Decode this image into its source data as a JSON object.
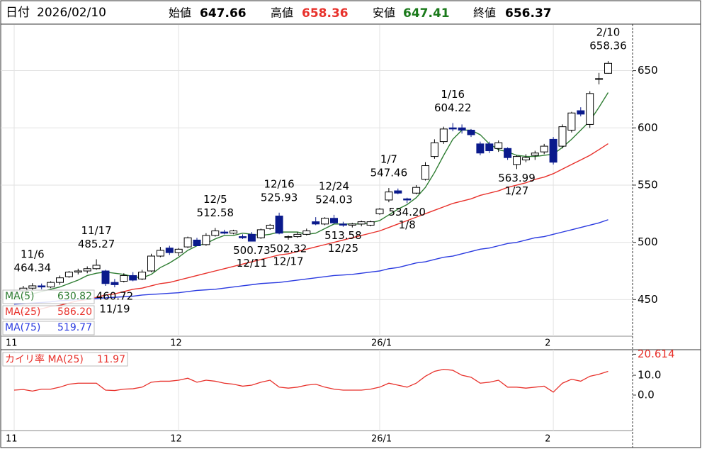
{
  "header": {
    "date_label": "日付",
    "date": "2026/02/10",
    "open_label": "始値",
    "open": 647.66,
    "high_label": "高値",
    "high": 658.36,
    "low_label": "安値",
    "low": 647.41,
    "close_label": "終値",
    "close": 656.37
  },
  "chart_data": {
    "type": "candlestick",
    "categories": [
      "11",
      null,
      null,
      null,
      null,
      null,
      null,
      null,
      null,
      null,
      null,
      null,
      null,
      null,
      null,
      null,
      null,
      null,
      "12",
      null,
      null,
      null,
      null,
      null,
      null,
      null,
      null,
      null,
      null,
      null,
      null,
      null,
      null,
      null,
      null,
      null,
      null,
      null,
      null,
      null,
      "26/1",
      null,
      null,
      null,
      null,
      null,
      null,
      null,
      null,
      null,
      null,
      null,
      null,
      null,
      null,
      null,
      null,
      null,
      null,
      "2",
      null,
      null,
      null,
      null,
      null,
      null
    ],
    "open": [
      455,
      457,
      460,
      462,
      461,
      465,
      470,
      474,
      475,
      477,
      475,
      465,
      466,
      471,
      468,
      475,
      488,
      495,
      491,
      496,
      502,
      498,
      506,
      509,
      508,
      505,
      507,
      504,
      512,
      523,
      505,
      505,
      507,
      518,
      516,
      521,
      516,
      515,
      516,
      515,
      525,
      537,
      545,
      538,
      543,
      555,
      575,
      588,
      600,
      600,
      598,
      586,
      586,
      582,
      582,
      568,
      572,
      576,
      579,
      590,
      584,
      598,
      615,
      603,
      643,
      647.66
    ],
    "high": [
      458,
      462,
      464.34,
      464,
      466,
      471,
      475,
      477,
      479,
      485.27,
      476,
      468,
      473,
      474,
      476,
      490,
      496,
      497,
      495,
      505,
      504,
      508,
      512.58,
      511,
      511,
      507,
      509,
      512,
      516,
      525.93,
      506,
      509,
      512,
      522,
      522,
      524.03,
      518,
      517,
      519,
      519,
      530,
      547.46,
      547,
      539,
      550,
      570,
      590,
      601,
      604.22,
      603,
      599,
      588,
      588,
      589,
      583,
      576,
      577,
      580,
      586,
      592,
      603,
      614,
      618,
      632,
      648,
      658.36
    ],
    "low": [
      452,
      455,
      458,
      459,
      460,
      463,
      469,
      472,
      473,
      476,
      462,
      460.72,
      465,
      466,
      467,
      474,
      487,
      489,
      488,
      495,
      497,
      497,
      505,
      507,
      507,
      503,
      500.73,
      503,
      511,
      507,
      502.32,
      504,
      506,
      515,
      515,
      516,
      513.58,
      513,
      514,
      514,
      524,
      535,
      542,
      534.2,
      542,
      554,
      573,
      586,
      597,
      595,
      592,
      576,
      578,
      579,
      572,
      563.99,
      570,
      572,
      577,
      568,
      582,
      596,
      610,
      600,
      638,
      647.41
    ],
    "close": [
      457,
      460,
      462,
      461,
      465,
      469,
      474,
      475,
      477,
      480,
      464,
      463,
      471,
      467,
      474,
      488,
      493,
      491,
      494,
      504,
      497,
      506,
      510,
      508,
      510,
      504,
      501,
      511,
      515,
      508,
      505,
      507,
      510,
      516,
      521,
      517,
      515,
      516,
      518,
      518,
      529,
      544,
      543,
      537,
      548,
      567,
      587,
      599,
      599,
      598,
      594,
      578,
      580,
      587,
      574,
      575,
      574,
      578,
      584,
      570,
      601,
      613,
      612,
      630,
      643,
      656.37
    ],
    "up_color": "#ffffff",
    "down_color": "#0a1a8c",
    "edge_color": "#000000",
    "ylim": [
      418,
      690
    ],
    "yticks": [
      450,
      500,
      550,
      600,
      650
    ],
    "grid": true,
    "series": [
      {
        "name": "MA(5)",
        "color": "#2e7d32",
        "legend_value": 630.82,
        "values": [
          450,
          452,
          455,
          457,
          459,
          461,
          464,
          467,
          471,
          473,
          474,
          473,
          472,
          470,
          469,
          472,
          478,
          482,
          487,
          493,
          497,
          499,
          503,
          506,
          506,
          508,
          507,
          506,
          507,
          509,
          509,
          509,
          507,
          508,
          512,
          516,
          516,
          516,
          516,
          517,
          519,
          524,
          529,
          533,
          539,
          548,
          561,
          576,
          590,
          598,
          598,
          594,
          586,
          581,
          579,
          576,
          575,
          575,
          576,
          577,
          583,
          590,
          598,
          606,
          618,
          630.82
        ]
      },
      {
        "name": "MA(25)",
        "color": "#e8312b",
        "legend_value": {
          "value": 586.2,
          "label": "586.20"
        },
        "values": [
          437,
          439,
          440,
          442,
          444,
          445,
          447,
          449,
          450,
          452,
          454,
          455,
          457,
          459,
          460,
          462,
          464,
          465,
          467,
          469,
          471,
          473,
          475,
          477,
          479,
          481,
          483,
          485,
          487,
          489,
          490,
          492,
          494,
          496,
          498,
          500,
          502,
          504,
          506,
          508,
          510,
          513,
          516,
          519,
          522,
          525,
          528,
          531,
          534,
          536,
          538,
          541,
          543,
          545,
          548,
          550,
          552,
          555,
          557,
          560,
          564,
          568,
          572,
          576,
          581,
          586.2
        ]
      },
      {
        "name": "MA(75)",
        "color": "#2b3be0",
        "legend_value": 519.77,
        "values": [
          446,
          446.5,
          447,
          447.5,
          448,
          449,
          449.5,
          450,
          450.5,
          451,
          451.5,
          452,
          452.5,
          453,
          454,
          454.5,
          455,
          455.5,
          456,
          457,
          458,
          458.5,
          459,
          460,
          461,
          462,
          463,
          464,
          464.5,
          465,
          466,
          467,
          468,
          469,
          470,
          471,
          471.5,
          472,
          473,
          474,
          475,
          477,
          478,
          480,
          482,
          483,
          485,
          487,
          488,
          490,
          492,
          494,
          495,
          497,
          499,
          500,
          502,
          504,
          505,
          507,
          509,
          511,
          513,
          515,
          517,
          519.77
        ]
      }
    ],
    "annotations_high": [
      {
        "label": "11/6",
        "value": 464.34
      },
      {
        "label": "11/17",
        "value": 485.27
      },
      {
        "label": "12/5",
        "value": 512.58
      },
      {
        "label": "12/16",
        "value": 525.93
      },
      {
        "label": "12/24",
        "value": 524.03
      },
      {
        "label": "1/7",
        "value": 547.46
      },
      {
        "label": "1/16",
        "value": 604.22
      },
      {
        "label": "2/10",
        "value": 658.36
      }
    ],
    "annotations_low": [
      {
        "label": "11/19",
        "value": 460.72
      },
      {
        "label": "12/11",
        "value": 500.73
      },
      {
        "label": "12/17",
        "value": 502.32
      },
      {
        "label": "12/25",
        "value": 513.58
      },
      {
        "label": "1/8",
        "value": {
          "value": 534.2,
          "label": "534.20"
        }
      },
      {
        "label": "1/27",
        "value": 563.99
      }
    ],
    "sub": {
      "name": "カイリ率 MA(25)",
      "legend_value": 11.97,
      "color": "#e8312b",
      "ylim": [
        -17.9,
        22.9
      ],
      "yticks": [
        {
          "value": 0,
          "label": "0.0"
        },
        {
          "value": 10,
          "label": "10.0"
        },
        20.614
      ],
      "values": [
        2.5,
        2.8,
        2,
        3,
        3,
        4,
        5.5,
        6,
        6,
        6,
        2.5,
        2.3,
        3,
        3.2,
        4,
        6.5,
        7,
        7,
        7.5,
        8.5,
        6.5,
        7.5,
        7,
        6,
        5.5,
        4.5,
        5,
        6.5,
        7.5,
        4,
        3.5,
        4,
        5,
        5.5,
        4,
        3,
        2.5,
        2.5,
        2.5,
        3,
        4,
        6,
        5,
        4,
        6,
        9.5,
        12,
        13,
        12.5,
        10,
        9,
        6,
        6.5,
        7.5,
        4,
        4,
        3.5,
        4,
        4.5,
        1.5,
        6,
        8,
        7,
        9.5,
        10.5,
        11.97
      ]
    }
  }
}
